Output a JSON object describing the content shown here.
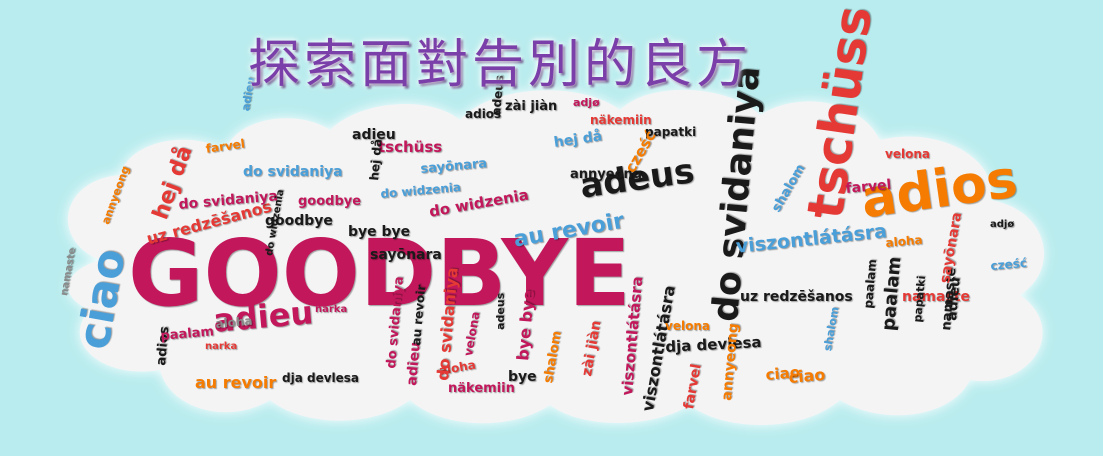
{
  "title": "探索面對告別的良方",
  "colors": {
    "background": "#b9ecee",
    "cloud": "#f4f4f5",
    "title": "#7a3fa8",
    "magenta": "#c2185b",
    "red": "#e53935",
    "orange": "#f57c00",
    "black": "#1a1a1a",
    "blue": "#4a9fd8",
    "gray": "#8a8a8a"
  },
  "words": [
    {
      "text": "GOODBYE",
      "c": "magenta"
    },
    {
      "text": "adios",
      "c": "orange"
    },
    {
      "text": "tschüss",
      "c": "red"
    },
    {
      "text": "adeus",
      "c": "black"
    },
    {
      "text": "do svidaniya",
      "c": "black"
    },
    {
      "text": "ciao",
      "c": "blue"
    },
    {
      "text": "adieu",
      "c": "magenta"
    },
    {
      "text": "viszontlátásra",
      "c": "blue"
    },
    {
      "text": "hej då",
      "c": "red"
    },
    {
      "text": "uz redzēšanos",
      "c": "red"
    },
    {
      "text": "do widzenia",
      "c": "magenta"
    },
    {
      "text": "au revoir",
      "c": "blue"
    },
    {
      "text": "goodbye",
      "c": "black"
    },
    {
      "text": "bye bye",
      "c": "black"
    },
    {
      "text": "sayōnara",
      "c": "black"
    },
    {
      "text": "zài jiàn",
      "c": "black"
    },
    {
      "text": "adios",
      "c": "black"
    },
    {
      "text": "näkemiin",
      "c": "red"
    },
    {
      "text": "adjø",
      "c": "magenta"
    },
    {
      "text": "papatki",
      "c": "black"
    },
    {
      "text": "farvel",
      "c": "orange"
    },
    {
      "text": "shalom",
      "c": "blue"
    },
    {
      "text": "velona",
      "c": "red"
    },
    {
      "text": "dja devlesa",
      "c": "black"
    },
    {
      "text": "uz redzēšanos",
      "c": "black"
    },
    {
      "text": "namaste",
      "c": "red"
    },
    {
      "text": "paalam",
      "c": "black"
    },
    {
      "text": "annyeong",
      "c": "orange"
    },
    {
      "text": "aloha",
      "c": "gray"
    },
    {
      "text": "narka",
      "c": "magenta"
    },
    {
      "text": "au revoir",
      "c": "orange"
    },
    {
      "text": "dja devlesa",
      "c": "black"
    },
    {
      "text": "bye",
      "c": "black"
    },
    {
      "text": "ciao",
      "c": "orange"
    },
    {
      "text": "viszontlátásra",
      "c": "black"
    },
    {
      "text": "cześć",
      "c": "orange"
    },
    {
      "text": "do svidaniya",
      "c": "magenta"
    },
    {
      "text": "tschüss",
      "c": "magenta"
    },
    {
      "text": "adieu",
      "c": "black"
    },
    {
      "text": "sayōnara",
      "c": "blue"
    },
    {
      "text": "hej då",
      "c": "blue"
    },
    {
      "text": "farvel",
      "c": "red"
    },
    {
      "text": "annyeong",
      "c": "black"
    },
    {
      "text": "paalam",
      "c": "black"
    },
    {
      "text": "namaste",
      "c": "black"
    },
    {
      "text": "adeus",
      "c": "black"
    },
    {
      "text": "shalom",
      "c": "orange"
    },
    {
      "text": "adieu",
      "c": "blue"
    },
    {
      "text": "do widzenia",
      "c": "black"
    },
    {
      "text": "do svidaniya",
      "c": "blue"
    },
    {
      "text": "aloha",
      "c": "orange"
    },
    {
      "text": "näkemiin",
      "c": "magenta"
    },
    {
      "text": "velona",
      "c": "magenta"
    },
    {
      "text": "zài jiàn",
      "c": "red"
    },
    {
      "text": "goodbye",
      "c": "magenta"
    },
    {
      "text": "papatki",
      "c": "black"
    },
    {
      "text": "adjø",
      "c": "black"
    },
    {
      "text": "farvel",
      "c": "magenta"
    },
    {
      "text": "bye bye",
      "c": "magenta"
    },
    {
      "text": "do svidaniya",
      "c": "magenta"
    },
    {
      "text": "sayōnara",
      "c": "red"
    },
    {
      "text": "cześć",
      "c": "blue"
    },
    {
      "text": "hej då",
      "c": "black"
    },
    {
      "text": "shalom",
      "c": "blue"
    },
    {
      "text": "ciao",
      "c": "orange"
    },
    {
      "text": "annyeong",
      "c": "orange"
    },
    {
      "text": "namaste",
      "c": "gray"
    },
    {
      "text": "adios",
      "c": "black"
    },
    {
      "text": "narka",
      "c": "red"
    },
    {
      "text": "viszontlátásra",
      "c": "magenta"
    },
    {
      "text": "aloha",
      "c": "red"
    },
    {
      "text": "velona",
      "c": "orange"
    },
    {
      "text": "do widzenia",
      "c": "blue"
    },
    {
      "text": "adieu",
      "c": "magenta"
    },
    {
      "text": "paalam",
      "c": "magenta"
    },
    {
      "text": "adieu",
      "c": "black"
    },
    {
      "text": "adeus",
      "c": "black"
    },
    {
      "text": "au revoir",
      "c": "black"
    },
    {
      "text": "do svidaniya",
      "c": "red"
    }
  ]
}
